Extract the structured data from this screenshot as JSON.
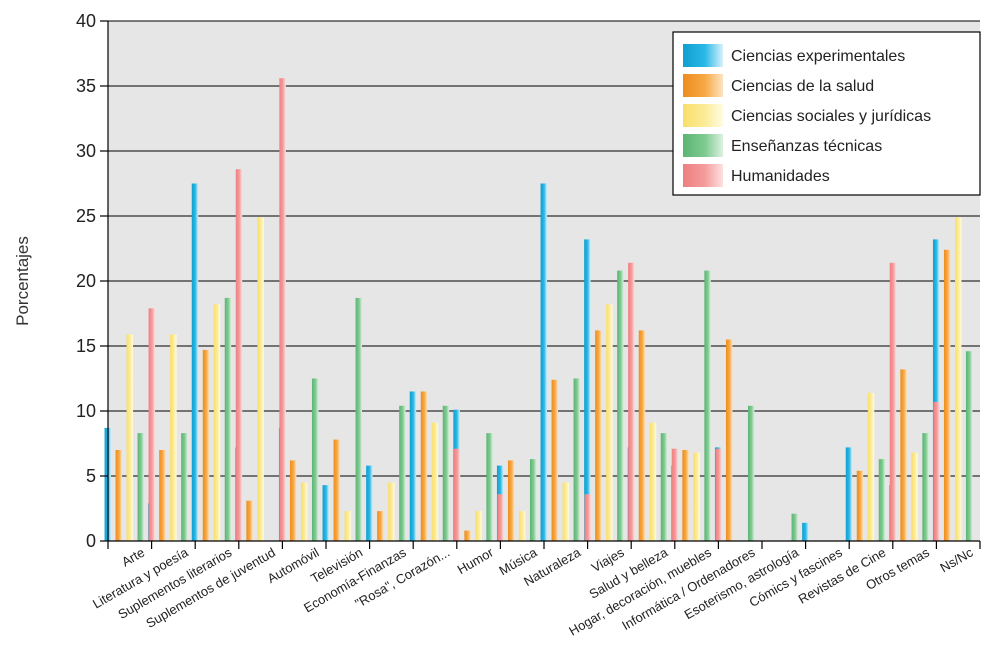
{
  "chart_data": {
    "type": "bar",
    "ylabel": "Porcentajes",
    "ylim": [
      0,
      40
    ],
    "yticks": [
      "0",
      "5",
      "10",
      "15",
      "20",
      "25",
      "30",
      "35",
      "40"
    ],
    "grid": true,
    "legend_position": "top-right",
    "categories": [
      "Arte",
      "Literatura y poesía",
      "Suplementos literarios",
      "Suplementos de juventud",
      "Automóvil",
      "Televisión",
      "Economía-Finanzas",
      "\"Rosa\", Corazón...",
      "Humor",
      "Música",
      "Naturaleza",
      "Viajes",
      "Salud y belleza",
      "Hogar, decoración, muebles",
      "Informática / Ordenadores",
      "Esoterismo, astrología",
      "Cómics y fascines",
      "Revistas de Cine",
      "Otros temas",
      "Ns/Nc"
    ],
    "series": [
      {
        "name": "Ciencias experimentales",
        "color": "#19b2e0",
        "values": [
          8.7,
          2.9,
          27.5,
          7.2,
          8.7,
          4.3,
          5.8,
          11.5,
          10.1,
          5.8,
          27.5,
          23.2,
          7.2,
          5.8,
          7.2,
          0,
          1.4,
          7.2,
          4.3,
          23.2
        ]
      },
      {
        "name": "Ciencias de la salud",
        "color": "#f5a030",
        "values": [
          7.0,
          7.0,
          14.7,
          3.1,
          6.2,
          7.8,
          2.3,
          11.5,
          0.8,
          6.2,
          12.4,
          16.2,
          16.2,
          7.0,
          15.5,
          0,
          0,
          5.4,
          13.2,
          22.4
        ]
      },
      {
        "name": "Ciencias sociales y jurídicas",
        "color": "#fcea8c",
        "values": [
          15.9,
          15.9,
          18.2,
          24.9,
          4.5,
          2.3,
          4.5,
          9.1,
          2.3,
          2.3,
          4.5,
          18.2,
          9.1,
          6.8,
          0,
          0,
          0,
          11.4,
          6.8,
          24.9
        ]
      },
      {
        "name": "Enseñanzas técnicas",
        "color": "#74c486",
        "values": [
          8.3,
          8.3,
          18.7,
          0,
          12.5,
          18.7,
          10.4,
          10.4,
          8.3,
          6.3,
          12.5,
          20.8,
          8.3,
          20.8,
          10.4,
          2.1,
          0,
          6.3,
          8.3,
          14.6
        ]
      },
      {
        "name": "Humanidades",
        "color": "#f08a8a",
        "values": [
          17.9,
          0,
          28.6,
          35.6,
          0,
          0,
          0,
          7.1,
          3.6,
          0,
          3.6,
          21.4,
          7.1,
          7.1,
          0,
          0,
          0,
          21.4,
          10.7,
          0
        ]
      }
    ]
  }
}
